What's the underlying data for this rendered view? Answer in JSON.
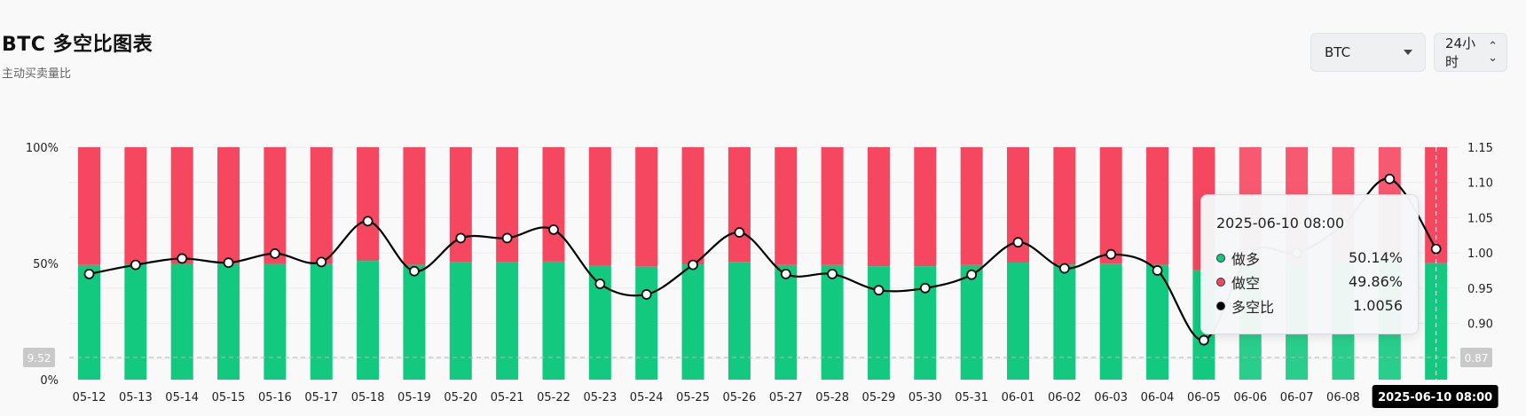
{
  "header": {
    "title": "BTC 多空比图表",
    "subtitle": "主动买卖量比"
  },
  "controls": {
    "symbol": "BTC",
    "interval": "24小时"
  },
  "chart_data": {
    "type": "bar",
    "title": "BTC 多空比图表",
    "categories": [
      "05-12",
      "05-13",
      "05-14",
      "05-15",
      "05-16",
      "05-17",
      "05-18",
      "05-19",
      "05-20",
      "05-21",
      "05-22",
      "05-23",
      "05-24",
      "05-25",
      "05-26",
      "05-27",
      "05-28",
      "05-29",
      "05-30",
      "05-31",
      "06-01",
      "06-02",
      "06-03",
      "06-04",
      "06-05",
      "06-06",
      "06-07",
      "06-08",
      "06-09",
      "06-10"
    ],
    "series": [
      {
        "name": "做多",
        "type": "stacked-bar",
        "axis": "left",
        "color": "#12c97f",
        "values": [
          49.3,
          49.6,
          49.8,
          49.7,
          50.0,
          49.7,
          51.1,
          49.4,
          50.5,
          50.5,
          50.8,
          48.9,
          48.6,
          49.6,
          50.7,
          49.3,
          49.3,
          48.8,
          48.8,
          49.3,
          50.4,
          49.5,
          49.9,
          49.4,
          47.1,
          49.5,
          49.9,
          50.5,
          52.4,
          50.14
        ]
      },
      {
        "name": "做空",
        "type": "stacked-bar",
        "axis": "left",
        "color": "#f64760",
        "values": [
          50.7,
          50.4,
          50.2,
          50.3,
          50.0,
          50.3,
          48.9,
          50.6,
          49.5,
          49.5,
          49.2,
          51.1,
          51.4,
          50.4,
          49.3,
          50.7,
          50.7,
          51.2,
          51.2,
          50.7,
          49.6,
          50.5,
          50.1,
          50.6,
          52.9,
          50.5,
          50.1,
          49.5,
          47.6,
          49.86
        ]
      },
      {
        "name": "多空比",
        "type": "line",
        "axis": "right",
        "color": "#000000",
        "values": [
          0.97,
          0.983,
          0.992,
          0.986,
          0.999,
          0.987,
          1.045,
          0.974,
          1.021,
          1.021,
          1.033,
          0.956,
          0.941,
          0.983,
          1.029,
          0.97,
          0.97,
          0.947,
          0.95,
          0.969,
          1.015,
          0.978,
          0.998,
          0.975,
          0.876,
          1.0,
          1.0,
          1.04,
          1.105,
          1.0056
        ]
      }
    ],
    "left_axis": {
      "ticks": [
        "100%",
        "50%",
        "0%"
      ],
      "ylim": [
        0,
        100
      ]
    },
    "right_axis": {
      "ticks": [
        "1.15",
        "1.10",
        "1.05",
        "1.00",
        "0.95",
        "0.90",
        "0.85"
      ],
      "ylim": [
        0.82,
        1.15
      ]
    },
    "crosshair": {
      "left_value": "9.52",
      "right_value": "0.87",
      "category_label": "2025-06-10 08:00",
      "active_index": 29
    },
    "grid": true
  },
  "tooltip": {
    "time": "2025-06-10 08:00",
    "rows": [
      {
        "label": "做多",
        "value": "50.14%",
        "color": "#12c97f"
      },
      {
        "label": "做空",
        "value": "49.86%",
        "color": "#f64760"
      },
      {
        "label": "多空比",
        "value": "1.0056",
        "color": "#000000"
      }
    ]
  }
}
